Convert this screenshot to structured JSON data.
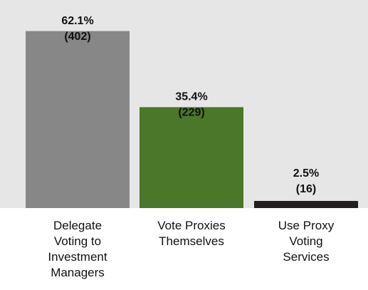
{
  "chart_data": {
    "type": "bar",
    "categories": [
      "Delegate\nVoting to\nInvestment\nManagers",
      "Vote Proxies\nThemselves",
      "Use Proxy\nVoting\nServices"
    ],
    "values": [
      62.1,
      35.4,
      2.5
    ],
    "value_labels": [
      "62.1%",
      "35.4%",
      "2.5%"
    ],
    "counts": [
      402,
      229,
      16
    ],
    "count_labels": [
      "(402)",
      "(229)",
      "(16)"
    ],
    "colors": [
      "#878787",
      "#4a7729",
      "#231f20"
    ]
  }
}
